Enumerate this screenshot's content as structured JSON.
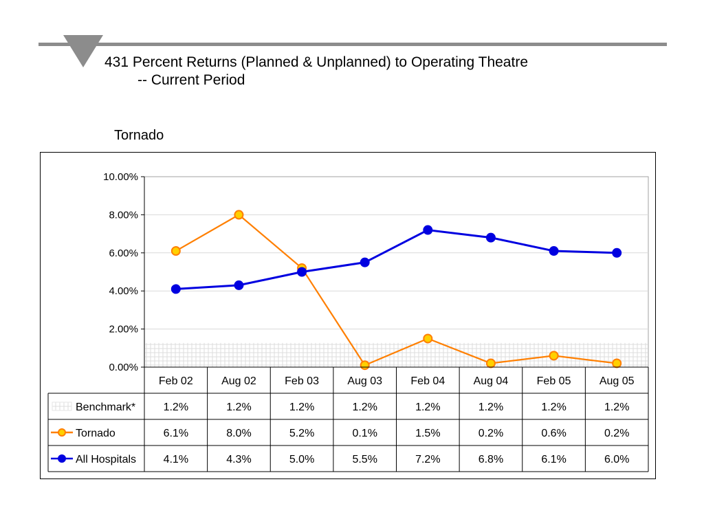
{
  "slide": {
    "title_line1": "431 Percent Returns (Planned & Unplanned)  to Operating Theatre",
    "title_line2": "-- Current Period",
    "triangle_icon": "down-triangle-icon",
    "rule_color": "#8c8c8c"
  },
  "chart_data": {
    "type": "line",
    "title": "Tornado",
    "categories": [
      "Feb 02",
      "Aug 02",
      "Feb 03",
      "Aug 03",
      "Feb 04",
      "Aug 04",
      "Feb 05",
      "Aug 05"
    ],
    "y_ticks": [
      "10.00%",
      "8.00%",
      "6.00%",
      "4.00%",
      "2.00%",
      "0.00%"
    ],
    "ylim": [
      0,
      10
    ],
    "grid": true,
    "legend": "data-table-left",
    "series": [
      {
        "name": "Benchmark*",
        "style": "hatched-band",
        "color": "#e8e8e8",
        "values": [
          1.2,
          1.2,
          1.2,
          1.2,
          1.2,
          1.2,
          1.2,
          1.2
        ],
        "labels": [
          "1.2%",
          "1.2%",
          "1.2%",
          "1.2%",
          "1.2%",
          "1.2%",
          "1.2%",
          "1.2%"
        ]
      },
      {
        "name": "Tornado",
        "style": "line",
        "color": "#ff7f00",
        "marker_fill": "#ffd000",
        "values": [
          6.1,
          8.0,
          5.2,
          0.1,
          1.5,
          0.2,
          0.6,
          0.2
        ],
        "labels": [
          "6.1%",
          "8.0%",
          "5.2%",
          "0.1%",
          "1.5%",
          "0.2%",
          "0.6%",
          "0.2%"
        ]
      },
      {
        "name": "All Hospitals",
        "style": "line",
        "color": "#0000e0",
        "marker_fill": "#0000e0",
        "values": [
          4.1,
          4.3,
          5.0,
          5.5,
          7.2,
          6.8,
          6.1,
          6.0
        ],
        "labels": [
          "4.1%",
          "4.3%",
          "5.0%",
          "5.5%",
          "7.2%",
          "6.8%",
          "6.1%",
          "6.0%"
        ]
      }
    ]
  }
}
